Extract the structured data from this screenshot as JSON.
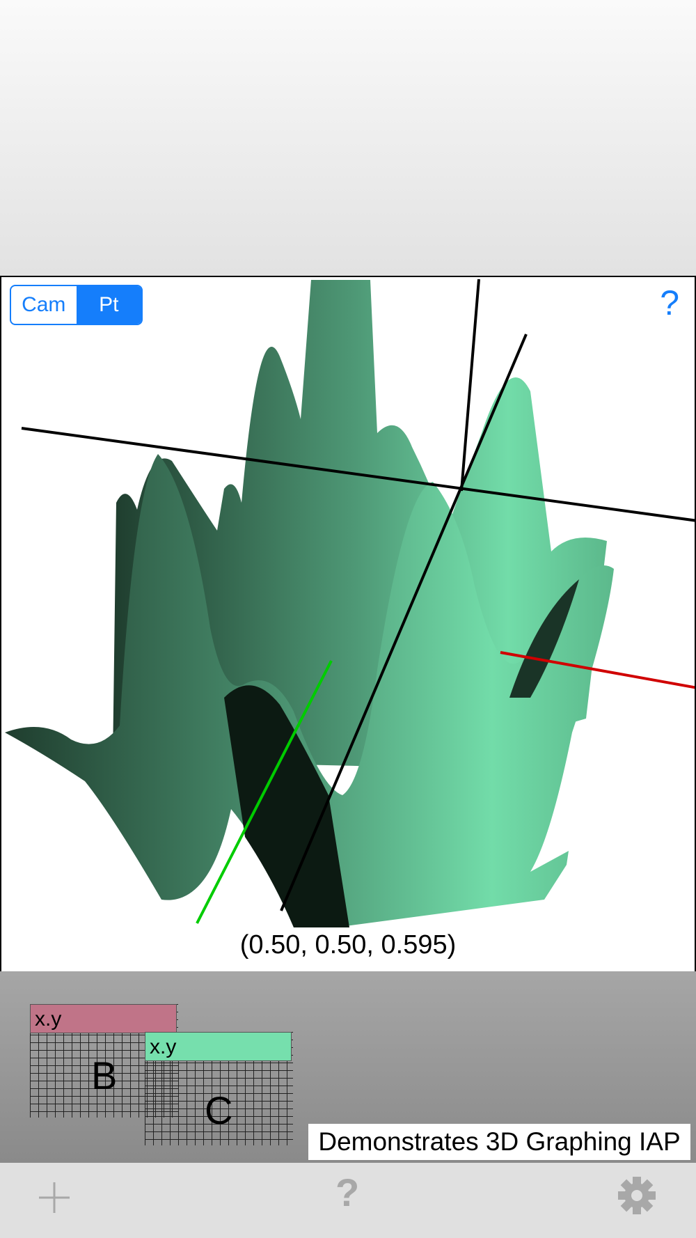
{
  "graph": {
    "mode_control": {
      "options": [
        "Cam",
        "Pt"
      ],
      "selected": "Pt"
    },
    "help_label": "?",
    "point_readout": "(0.50, 0.50,  0.595)",
    "surface_color": "#72dca9",
    "axis_colors": {
      "x": "#d00000",
      "y": "#00cc00",
      "z": "#000000"
    }
  },
  "tray": {
    "cards": [
      {
        "header": "x.y",
        "label": "B",
        "color": "#c07488"
      },
      {
        "header": "x.y",
        "label": "C",
        "color": "#76dfad"
      }
    ],
    "caption": "Demonstrates 3D Graphing IAP"
  },
  "toolbar": {
    "add_icon": "plus-icon",
    "help_label": "?",
    "settings_icon": "gear-icon"
  }
}
